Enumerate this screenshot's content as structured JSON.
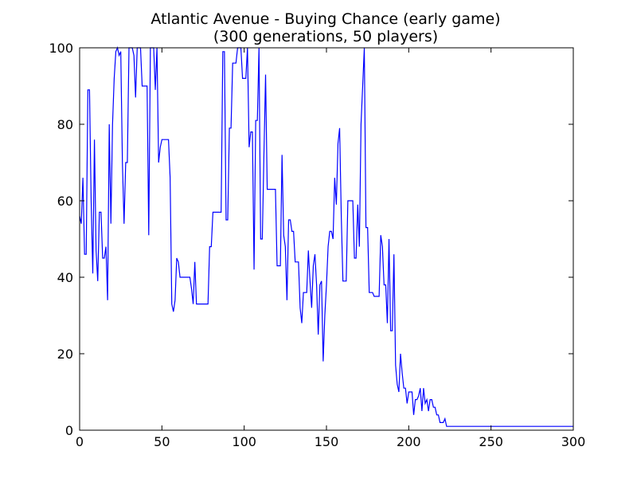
{
  "chart_data": {
    "type": "line",
    "title": "Atlantic Avenue - Buying Chance (early game)",
    "subtitle": "(300 generations, 50 players)",
    "xlabel": "",
    "ylabel": "",
    "xlim": [
      0,
      300
    ],
    "ylim": [
      0,
      100
    ],
    "xticks": [
      0,
      50,
      100,
      150,
      200,
      250,
      300
    ],
    "yticks": [
      0,
      20,
      40,
      60,
      80,
      100
    ],
    "grid": false,
    "series": [
      {
        "name": "",
        "color": "#0000ff",
        "points": [
          [
            0,
            56
          ],
          [
            1,
            54
          ],
          [
            2,
            66
          ],
          [
            3,
            46
          ],
          [
            4,
            46
          ],
          [
            5,
            89
          ],
          [
            6,
            89
          ],
          [
            7,
            60
          ],
          [
            8,
            41
          ],
          [
            9,
            76
          ],
          [
            10,
            47
          ],
          [
            11,
            39
          ],
          [
            12,
            57
          ],
          [
            13,
            57
          ],
          [
            14,
            45
          ],
          [
            15,
            45
          ],
          [
            16,
            48
          ],
          [
            17,
            34
          ],
          [
            18,
            80
          ],
          [
            19,
            54
          ],
          [
            20,
            80
          ],
          [
            21,
            92
          ],
          [
            22,
            99
          ],
          [
            23,
            100
          ],
          [
            24,
            98
          ],
          [
            25,
            99
          ],
          [
            26,
            70
          ],
          [
            27,
            54
          ],
          [
            28,
            70
          ],
          [
            29,
            70
          ],
          [
            30,
            100
          ],
          [
            31,
            100
          ],
          [
            32,
            100
          ],
          [
            33,
            98
          ],
          [
            34,
            87
          ],
          [
            35,
            100
          ],
          [
            36,
            100
          ],
          [
            37,
            100
          ],
          [
            38,
            90
          ],
          [
            39,
            90
          ],
          [
            40,
            90
          ],
          [
            41,
            90
          ],
          [
            42,
            51
          ],
          [
            43,
            100
          ],
          [
            44,
            100
          ],
          [
            45,
            100
          ],
          [
            46,
            89
          ],
          [
            47,
            100
          ],
          [
            48,
            70
          ],
          [
            49,
            74
          ],
          [
            50,
            76
          ],
          [
            51,
            76
          ],
          [
            52,
            76
          ],
          [
            53,
            76
          ],
          [
            54,
            76
          ],
          [
            55,
            66
          ],
          [
            56,
            33
          ],
          [
            57,
            31
          ],
          [
            58,
            34
          ],
          [
            59,
            45
          ],
          [
            60,
            44
          ],
          [
            61,
            40
          ],
          [
            62,
            40
          ],
          [
            63,
            40
          ],
          [
            64,
            40
          ],
          [
            65,
            40
          ],
          [
            66,
            40
          ],
          [
            67,
            40
          ],
          [
            68,
            37
          ],
          [
            69,
            33
          ],
          [
            70,
            44
          ],
          [
            71,
            33
          ],
          [
            72,
            33
          ],
          [
            73,
            33
          ],
          [
            74,
            33
          ],
          [
            75,
            33
          ],
          [
            76,
            33
          ],
          [
            77,
            33
          ],
          [
            78,
            33
          ],
          [
            79,
            48
          ],
          [
            80,
            48
          ],
          [
            81,
            57
          ],
          [
            82,
            57
          ],
          [
            83,
            57
          ],
          [
            84,
            57
          ],
          [
            85,
            57
          ],
          [
            86,
            57
          ],
          [
            87,
            99
          ],
          [
            88,
            99
          ],
          [
            89,
            55
          ],
          [
            90,
            55
          ],
          [
            91,
            79
          ],
          [
            92,
            79
          ],
          [
            93,
            96
          ],
          [
            94,
            96
          ],
          [
            95,
            96
          ],
          [
            96,
            100
          ],
          [
            97,
            100
          ],
          [
            98,
            100
          ],
          [
            99,
            92
          ],
          [
            100,
            92
          ],
          [
            101,
            92
          ],
          [
            102,
            100
          ],
          [
            103,
            74
          ],
          [
            104,
            78
          ],
          [
            105,
            78
          ],
          [
            106,
            42
          ],
          [
            107,
            81
          ],
          [
            108,
            81
          ],
          [
            109,
            100
          ],
          [
            110,
            50
          ],
          [
            111,
            50
          ],
          [
            112,
            72
          ],
          [
            113,
            93
          ],
          [
            114,
            63
          ],
          [
            115,
            63
          ],
          [
            116,
            63
          ],
          [
            117,
            63
          ],
          [
            118,
            63
          ],
          [
            119,
            63
          ],
          [
            120,
            43
          ],
          [
            121,
            43
          ],
          [
            122,
            43
          ],
          [
            123,
            72
          ],
          [
            124,
            51
          ],
          [
            125,
            48
          ],
          [
            126,
            34
          ],
          [
            127,
            55
          ],
          [
            128,
            55
          ],
          [
            129,
            52
          ],
          [
            130,
            52
          ],
          [
            131,
            44
          ],
          [
            132,
            44
          ],
          [
            133,
            44
          ],
          [
            134,
            32
          ],
          [
            135,
            28
          ],
          [
            136,
            36
          ],
          [
            137,
            36
          ],
          [
            138,
            36
          ],
          [
            139,
            47
          ],
          [
            140,
            39
          ],
          [
            141,
            32
          ],
          [
            142,
            43
          ],
          [
            143,
            46
          ],
          [
            144,
            38
          ],
          [
            145,
            25
          ],
          [
            146,
            38
          ],
          [
            147,
            39
          ],
          [
            148,
            18
          ],
          [
            149,
            30
          ],
          [
            150,
            38
          ],
          [
            151,
            48
          ],
          [
            152,
            52
          ],
          [
            153,
            52
          ],
          [
            154,
            50
          ],
          [
            155,
            66
          ],
          [
            156,
            59
          ],
          [
            157,
            75
          ],
          [
            158,
            79
          ],
          [
            159,
            56
          ],
          [
            160,
            39
          ],
          [
            161,
            39
          ],
          [
            162,
            39
          ],
          [
            163,
            60
          ],
          [
            164,
            60
          ],
          [
            165,
            60
          ],
          [
            166,
            60
          ],
          [
            167,
            45
          ],
          [
            168,
            45
          ],
          [
            169,
            59
          ],
          [
            170,
            48
          ],
          [
            171,
            80
          ],
          [
            172,
            90
          ],
          [
            173,
            100
          ],
          [
            174,
            53
          ],
          [
            175,
            53
          ],
          [
            176,
            36
          ],
          [
            177,
            36
          ],
          [
            178,
            36
          ],
          [
            179,
            35
          ],
          [
            180,
            35
          ],
          [
            181,
            35
          ],
          [
            182,
            35
          ],
          [
            183,
            51
          ],
          [
            184,
            48
          ],
          [
            185,
            38
          ],
          [
            186,
            38
          ],
          [
            187,
            28
          ],
          [
            188,
            50
          ],
          [
            189,
            26
          ],
          [
            190,
            26
          ],
          [
            191,
            46
          ],
          [
            192,
            17
          ],
          [
            193,
            12
          ],
          [
            194,
            10
          ],
          [
            195,
            20
          ],
          [
            196,
            15
          ],
          [
            197,
            11
          ],
          [
            198,
            11
          ],
          [
            199,
            7
          ],
          [
            200,
            10
          ],
          [
            201,
            10
          ],
          [
            202,
            10
          ],
          [
            203,
            4
          ],
          [
            204,
            8
          ],
          [
            205,
            8
          ],
          [
            206,
            9
          ],
          [
            207,
            11
          ],
          [
            208,
            5
          ],
          [
            209,
            11
          ],
          [
            210,
            7
          ],
          [
            211,
            8
          ],
          [
            212,
            5
          ],
          [
            213,
            8
          ],
          [
            214,
            8
          ],
          [
            215,
            6
          ],
          [
            216,
            6
          ],
          [
            217,
            4
          ],
          [
            218,
            4
          ],
          [
            219,
            2
          ],
          [
            220,
            2
          ],
          [
            221,
            2
          ],
          [
            222,
            3
          ],
          [
            223,
            1
          ],
          [
            224,
            1
          ],
          [
            225,
            1
          ],
          [
            230,
            1
          ],
          [
            240,
            1
          ],
          [
            250,
            1
          ],
          [
            260,
            1
          ],
          [
            270,
            1
          ],
          [
            280,
            1
          ],
          [
            290,
            1
          ],
          [
            300,
            1
          ]
        ]
      }
    ]
  }
}
